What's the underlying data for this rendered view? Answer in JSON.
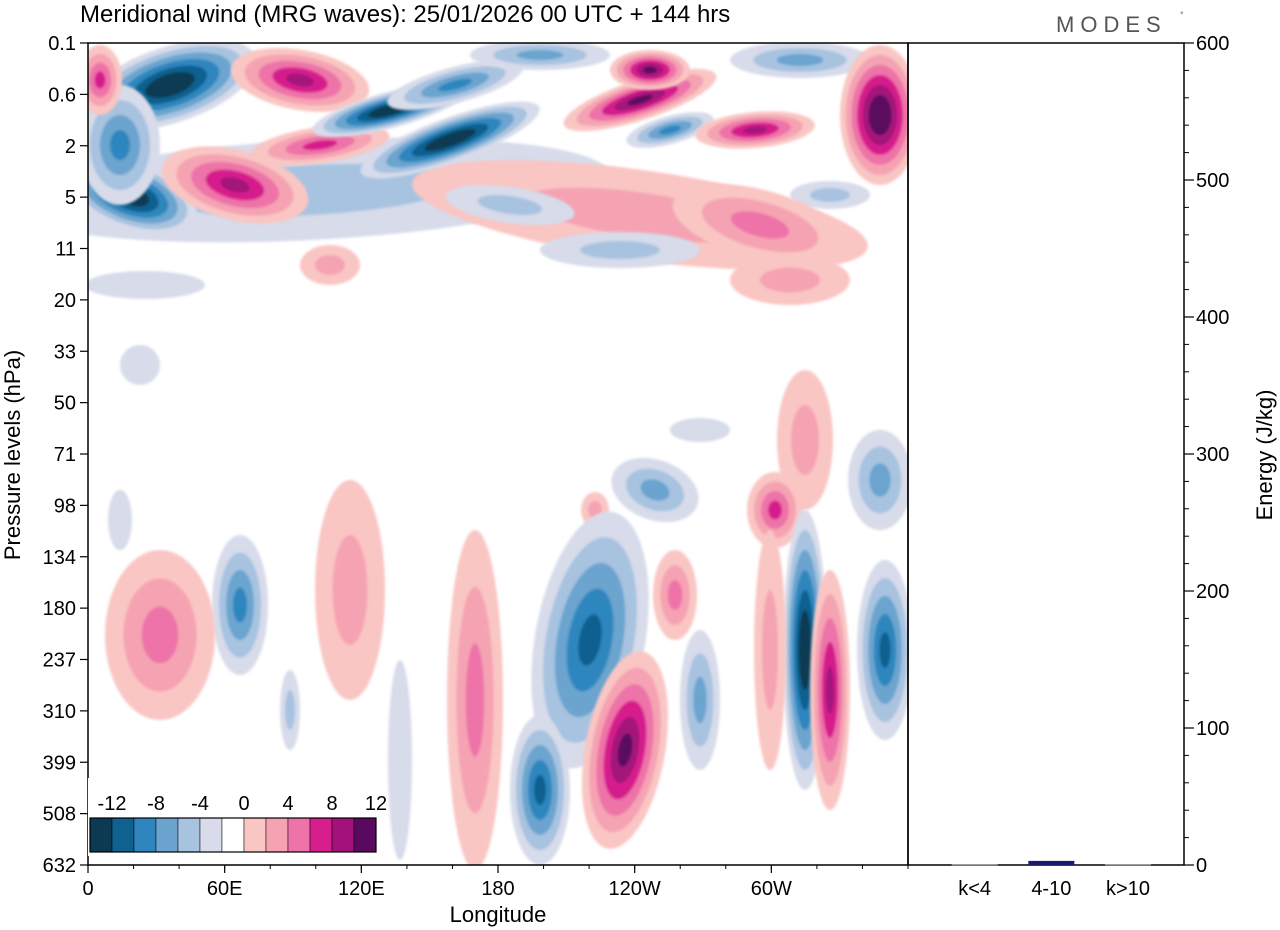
{
  "title": "Meridional wind (MRG waves):  25/01/2026  00 UTC  + 144 hrs",
  "logo": "MODES",
  "chart_data": [
    {
      "type": "heatmap",
      "title": "Meridional wind (MRG waves):  25/01/2026  00 UTC  + 144 hrs",
      "xlabel": "Longitude",
      "ylabel": "Pressure levels (hPa)",
      "xlim": [
        0,
        360
      ],
      "x_ticks": [
        {
          "lon": 0,
          "label": "0"
        },
        {
          "lon": 60,
          "label": "60E"
        },
        {
          "lon": 120,
          "label": "120E"
        },
        {
          "lon": 180,
          "label": "180"
        },
        {
          "lon": 240,
          "label": "120W"
        },
        {
          "lon": 300,
          "label": "60W"
        }
      ],
      "pressure_levels": [
        "0.1",
        "0.6",
        "2",
        "5",
        "11",
        "20",
        "33",
        "50",
        "71",
        "98",
        "134",
        "180",
        "237",
        "310",
        "399",
        "508",
        "632"
      ],
      "colorbar": {
        "labels": [
          "-12",
          "-8",
          "-4",
          "0",
          "4",
          "8",
          "12"
        ],
        "levels": [
          -14,
          -12,
          -10,
          -8,
          -6,
          -4,
          -2,
          2,
          4,
          6,
          8,
          10,
          12,
          14
        ],
        "colors": [
          "#0c3a52",
          "#0f6190",
          "#2f86be",
          "#6aa4cf",
          "#a7c3e0",
          "#d7dbea",
          "#ffffff",
          "#f9c6c3",
          "#f5a3b3",
          "#ee73a8",
          "#d61f8c",
          "#a3127a",
          "#5a0a5e"
        ]
      },
      "features": [
        {
          "name": "negative-band-upper-west",
          "lon": 25,
          "level": "0.6",
          "value": -14
        },
        {
          "name": "negative-band-upper-west-low",
          "lon": 15,
          "level": "5",
          "value": -14
        },
        {
          "name": "positive-upper-60E",
          "lon": 50,
          "level": "5",
          "value": 10
        },
        {
          "name": "negative-upper-150E",
          "lon": 150,
          "level": "2",
          "value": -14
        },
        {
          "name": "positive-upper-120W",
          "lon": 240,
          "level": "0.6",
          "value": 12
        },
        {
          "name": "positive-upper-east",
          "lon": 352,
          "level": "0.6",
          "value": 14
        },
        {
          "name": "positive-stratosphere-80W",
          "lon": 285,
          "level": "5",
          "value": 6
        },
        {
          "name": "negative-trop-160W",
          "lon": 200,
          "level": "237",
          "value": -10
        },
        {
          "name": "positive-trop-115W",
          "lon": 237,
          "level": "399",
          "value": 12
        },
        {
          "name": "negative-trop-185",
          "lon": 188,
          "level": "508",
          "value": -10
        },
        {
          "name": "negative-trop-50W",
          "lon": 315,
          "level": "237",
          "value": -12
        },
        {
          "name": "positive-trop-40W",
          "lon": 325,
          "level": "310",
          "value": 10
        },
        {
          "name": "positive-trop-40E",
          "lon": 35,
          "level": "180",
          "value": 6
        },
        {
          "name": "negative-trop-east",
          "lon": 352,
          "level": "237",
          "value": -10
        },
        {
          "name": "positive-98hPa-65W",
          "lon": 296,
          "level": "98",
          "value": 8
        }
      ]
    },
    {
      "type": "bar",
      "ylabel": "Energy (J/kg)",
      "ylim": [
        0,
        600
      ],
      "y_ticks": [
        "0",
        "100",
        "200",
        "300",
        "400",
        "500",
        "600"
      ],
      "categories": [
        "k<4",
        "4-10",
        "k>10"
      ],
      "values": [
        0.5,
        3,
        0.5
      ],
      "colors": [
        "#aaaaaa",
        "#1a1a6e",
        "#aaaaaa"
      ]
    }
  ]
}
